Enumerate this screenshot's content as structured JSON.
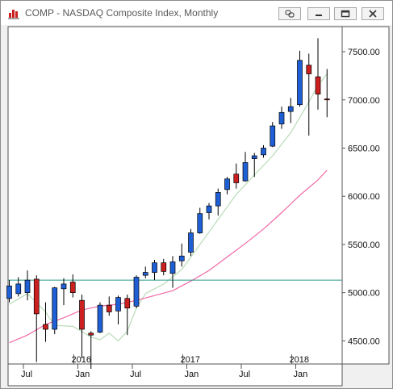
{
  "window": {
    "title": "COMP - NASDAQ Composite Index, Monthly",
    "icon": "bar-chart-app-icon",
    "buttons": [
      "link-icon",
      "minimize-icon",
      "restore-icon",
      "close-icon"
    ]
  },
  "colors": {
    "up_candle": "#1f5fd6",
    "down_candle": "#cc1f1f",
    "ma_short": "#b8dcb8",
    "ma_long": "#f06aa8",
    "reference_line": "#2a9a8a"
  },
  "chart_data": {
    "type": "candlestick",
    "title": "",
    "symbol": "COMP",
    "period": "Monthly",
    "ylim": [
      4260,
      7760
    ],
    "y_ticks": [
      4500,
      5000,
      5500,
      6000,
      6500,
      7000,
      7500
    ],
    "y_tick_labels": [
      "4500.00",
      "5000.00",
      "5500.00",
      "6000.00",
      "6500.00",
      "7000.00",
      "7500.00"
    ],
    "x_year_labels": [
      {
        "label": "2016",
        "date": "2016-01"
      },
      {
        "label": "2017",
        "date": "2017-01"
      },
      {
        "label": "2018",
        "date": "2018-01"
      }
    ],
    "x_month_labels": [
      {
        "label": "Jul",
        "date": "2015-07"
      },
      {
        "label": "Jan",
        "date": "2016-01"
      },
      {
        "label": "Jul",
        "date": "2016-07"
      },
      {
        "label": "Jan",
        "date": "2017-01"
      },
      {
        "label": "Jul",
        "date": "2017-07"
      },
      {
        "label": "Jan",
        "date": "2018-01"
      }
    ],
    "reference_line": 5130,
    "candles": [
      {
        "date": "2015-05",
        "open": 4940,
        "high": 5130,
        "low": 4900,
        "close": 5070
      },
      {
        "date": "2015-06",
        "open": 4990,
        "high": 5160,
        "low": 4960,
        "close": 5090
      },
      {
        "date": "2015-07",
        "open": 5000,
        "high": 5230,
        "low": 4920,
        "close": 5130
      },
      {
        "date": "2015-08",
        "open": 5140,
        "high": 5180,
        "low": 4280,
        "close": 4780
      },
      {
        "date": "2015-09",
        "open": 4670,
        "high": 4900,
        "low": 4490,
        "close": 4620
      },
      {
        "date": "2015-10",
        "open": 4620,
        "high": 5060,
        "low": 4570,
        "close": 5050
      },
      {
        "date": "2015-11",
        "open": 5040,
        "high": 5150,
        "low": 4870,
        "close": 5090
      },
      {
        "date": "2015-12",
        "open": 5110,
        "high": 5190,
        "low": 4950,
        "close": 5000
      },
      {
        "date": "2016-01",
        "open": 4920,
        "high": 4980,
        "low": 4320,
        "close": 4620
      },
      {
        "date": "2016-02",
        "open": 4580,
        "high": 4600,
        "low": 4210,
        "close": 4560
      },
      {
        "date": "2016-03",
        "open": 4590,
        "high": 4900,
        "low": 4580,
        "close": 4870
      },
      {
        "date": "2016-04",
        "open": 4870,
        "high": 4960,
        "low": 4760,
        "close": 4800
      },
      {
        "date": "2016-05",
        "open": 4810,
        "high": 4970,
        "low": 4670,
        "close": 4950
      },
      {
        "date": "2016-06",
        "open": 4940,
        "high": 4980,
        "low": 4560,
        "close": 4840
      },
      {
        "date": "2016-07",
        "open": 4860,
        "high": 5180,
        "low": 4840,
        "close": 5160
      },
      {
        "date": "2016-08",
        "open": 5180,
        "high": 5270,
        "low": 5150,
        "close": 5210
      },
      {
        "date": "2016-09",
        "open": 5210,
        "high": 5340,
        "low": 5130,
        "close": 5310
      },
      {
        "date": "2016-10",
        "open": 5310,
        "high": 5350,
        "low": 5180,
        "close": 5220
      },
      {
        "date": "2016-11",
        "open": 5200,
        "high": 5380,
        "low": 5050,
        "close": 5320
      },
      {
        "date": "2016-12",
        "open": 5330,
        "high": 5510,
        "low": 5270,
        "close": 5380
      },
      {
        "date": "2017-01",
        "open": 5420,
        "high": 5660,
        "low": 5380,
        "close": 5620
      },
      {
        "date": "2017-02",
        "open": 5620,
        "high": 5880,
        "low": 5610,
        "close": 5820
      },
      {
        "date": "2017-03",
        "open": 5830,
        "high": 5930,
        "low": 5760,
        "close": 5900
      },
      {
        "date": "2017-04",
        "open": 5900,
        "high": 6080,
        "low": 5800,
        "close": 6040
      },
      {
        "date": "2017-05",
        "open": 6070,
        "high": 6200,
        "low": 6020,
        "close": 6180
      },
      {
        "date": "2017-06",
        "open": 6230,
        "high": 6340,
        "low": 6080,
        "close": 6140
      },
      {
        "date": "2017-07",
        "open": 6160,
        "high": 6460,
        "low": 6150,
        "close": 6350
      },
      {
        "date": "2017-08",
        "open": 6390,
        "high": 6450,
        "low": 6200,
        "close": 6420
      },
      {
        "date": "2017-09",
        "open": 6430,
        "high": 6530,
        "low": 6400,
        "close": 6500
      },
      {
        "date": "2017-10",
        "open": 6520,
        "high": 6770,
        "low": 6510,
        "close": 6730
      },
      {
        "date": "2017-11",
        "open": 6750,
        "high": 6930,
        "low": 6700,
        "close": 6870
      },
      {
        "date": "2017-12",
        "open": 6880,
        "high": 7020,
        "low": 6760,
        "close": 6930
      },
      {
        "date": "2018-01",
        "open": 6950,
        "high": 7510,
        "low": 6930,
        "close": 7410
      },
      {
        "date": "2018-02",
        "open": 7360,
        "high": 7480,
        "low": 6630,
        "close": 7270
      },
      {
        "date": "2018-03",
        "open": 7240,
        "high": 7640,
        "low": 6900,
        "close": 7060
      },
      {
        "date": "2018-04",
        "open": 7010,
        "high": 7320,
        "low": 6820,
        "close": 7000
      }
    ],
    "series": [
      {
        "type": "moving-average",
        "color": "#b8dcb8",
        "points": [
          [
            "2015-05",
            4880
          ],
          [
            "2015-07",
            4990
          ],
          [
            "2015-09",
            4800
          ],
          [
            "2015-10",
            4660
          ],
          [
            "2015-12",
            4650
          ],
          [
            "2016-02",
            4540
          ],
          [
            "2016-03",
            4510
          ],
          [
            "2016-04",
            4580
          ],
          [
            "2016-05",
            4500
          ],
          [
            "2016-06",
            4600
          ],
          [
            "2016-07",
            4840
          ],
          [
            "2016-08",
            4990
          ],
          [
            "2016-10",
            5090
          ],
          [
            "2016-12",
            5240
          ],
          [
            "2017-02",
            5500
          ],
          [
            "2017-04",
            5760
          ],
          [
            "2017-06",
            6020
          ],
          [
            "2017-08",
            6220
          ],
          [
            "2017-10",
            6420
          ],
          [
            "2017-12",
            6660
          ],
          [
            "2018-02",
            6980
          ],
          [
            "2018-03",
            7150
          ],
          [
            "2018-04",
            7270
          ]
        ]
      },
      {
        "type": "moving-average",
        "color": "#f06aa8",
        "points": [
          [
            "2015-05",
            4480
          ],
          [
            "2015-07",
            4560
          ],
          [
            "2015-09",
            4670
          ],
          [
            "2015-11",
            4740
          ],
          [
            "2016-01",
            4820
          ],
          [
            "2016-03",
            4860
          ],
          [
            "2016-05",
            4880
          ],
          [
            "2016-07",
            4920
          ],
          [
            "2016-09",
            4970
          ],
          [
            "2016-11",
            5020
          ],
          [
            "2017-01",
            5120
          ],
          [
            "2017-03",
            5230
          ],
          [
            "2017-05",
            5370
          ],
          [
            "2017-07",
            5510
          ],
          [
            "2017-09",
            5660
          ],
          [
            "2017-11",
            5830
          ],
          [
            "2018-01",
            6010
          ],
          [
            "2018-03",
            6170
          ],
          [
            "2018-04",
            6270
          ]
        ]
      }
    ]
  }
}
